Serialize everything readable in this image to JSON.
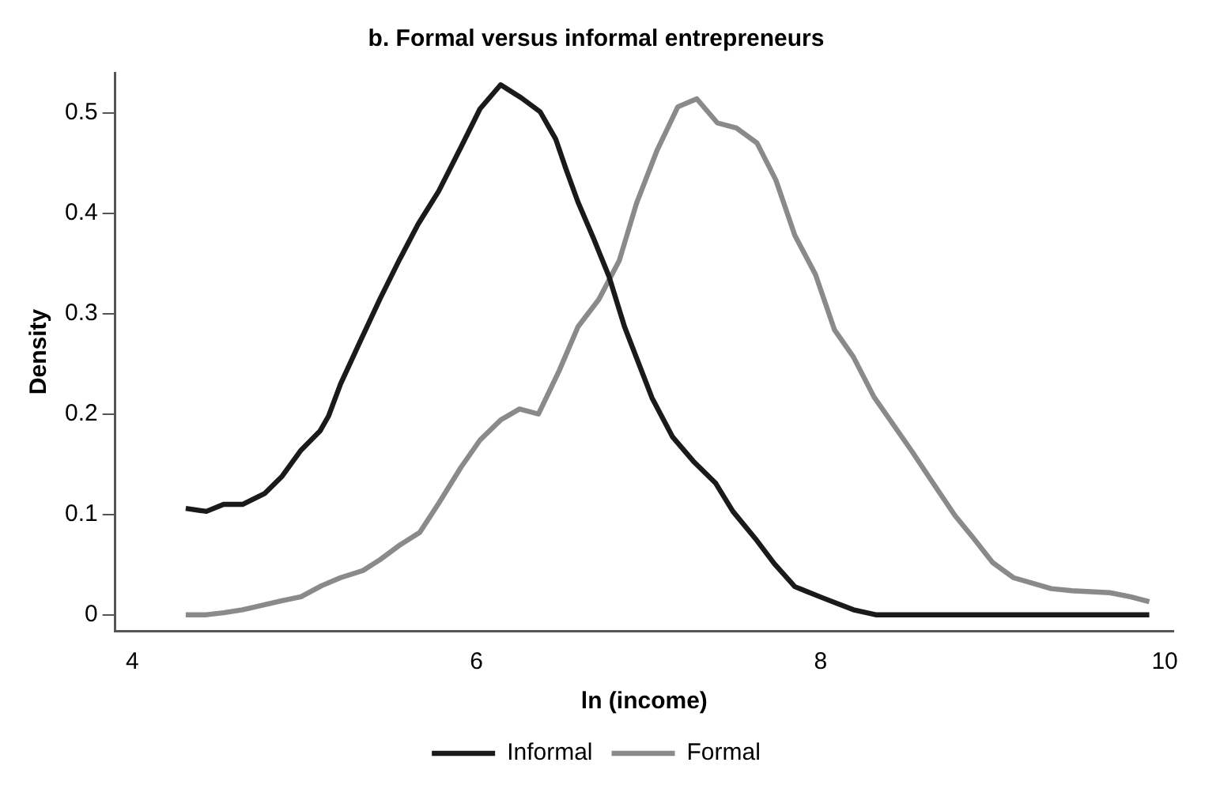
{
  "chart_data": {
    "type": "line",
    "title": "b. Formal versus informal entrepreneurs",
    "xlabel": "ln (income)",
    "ylabel": "Density",
    "xlim": [
      3.9,
      10.05
    ],
    "ylim": [
      -0.016,
      0.54
    ],
    "xticks": [
      4,
      6,
      8,
      10
    ],
    "yticks": [
      0,
      0.1,
      0.2,
      0.3,
      0.4,
      0.5
    ],
    "grid": false,
    "legend": "bottom",
    "marker": "none",
    "line_style": "solid",
    "series": [
      {
        "name": "Informal",
        "color": "#1a1a1a",
        "x": [
          4.31,
          4.43,
          4.53,
          4.64,
          4.77,
          4.87,
          4.98,
          5.09,
          5.14,
          5.21,
          5.32,
          5.44,
          5.55,
          5.66,
          5.78,
          5.91,
          6.02,
          6.14,
          6.26,
          6.37,
          6.46,
          6.52,
          6.59,
          6.68,
          6.77,
          6.86,
          7.02,
          7.14,
          7.26,
          7.39,
          7.49,
          7.62,
          7.73,
          7.85,
          8.01,
          8.19,
          8.32,
          9.91
        ],
        "values": [
          0.106,
          0.103,
          0.11,
          0.11,
          0.121,
          0.138,
          0.164,
          0.183,
          0.198,
          0.23,
          0.271,
          0.315,
          0.353,
          0.389,
          0.422,
          0.466,
          0.504,
          0.528,
          0.515,
          0.501,
          0.474,
          0.444,
          0.411,
          0.375,
          0.337,
          0.287,
          0.216,
          0.177,
          0.153,
          0.131,
          0.103,
          0.076,
          0.051,
          0.028,
          0.017,
          0.005,
          0,
          0
        ]
      },
      {
        "name": "Formal",
        "color": "#8a8a8a",
        "x": [
          4.31,
          4.43,
          4.53,
          4.64,
          4.77,
          4.87,
          4.98,
          5.1,
          5.21,
          5.34,
          5.44,
          5.55,
          5.67,
          5.78,
          5.91,
          6.02,
          6.14,
          6.25,
          6.36,
          6.48,
          6.59,
          6.71,
          6.83,
          6.93,
          7.05,
          7.17,
          7.28,
          7.4,
          7.51,
          7.63,
          7.74,
          7.85,
          7.97,
          8.08,
          8.19,
          8.31,
          8.53,
          8.65,
          8.78,
          8.89,
          9,
          9.12,
          9.34,
          9.46,
          9.68,
          9.8,
          9.91
        ],
        "values": [
          0,
          0,
          0.002,
          0.005,
          0.01,
          0.014,
          0.018,
          0.029,
          0.037,
          0.044,
          0.055,
          0.069,
          0.082,
          0.111,
          0.147,
          0.174,
          0.194,
          0.205,
          0.2,
          0.243,
          0.287,
          0.314,
          0.353,
          0.41,
          0.463,
          0.506,
          0.514,
          0.49,
          0.485,
          0.47,
          0.433,
          0.378,
          0.339,
          0.284,
          0.257,
          0.217,
          0.163,
          0.132,
          0.099,
          0.076,
          0.052,
          0.037,
          0.026,
          0.024,
          0.022,
          0.018,
          0.013
        ]
      }
    ]
  }
}
